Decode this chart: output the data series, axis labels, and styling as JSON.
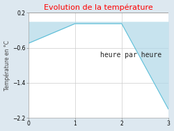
{
  "title": "Evolution de la température",
  "title_color": "#ff0000",
  "ylabel": "Température en °C",
  "xlabel_text": "heure par heure",
  "x": [
    0,
    1,
    2,
    3
  ],
  "y": [
    -0.5,
    -0.05,
    -0.05,
    -2.0
  ],
  "xlim": [
    0,
    3
  ],
  "ylim": [
    -2.2,
    0.2
  ],
  "yticks": [
    0.2,
    -0.6,
    -1.4,
    -2.2
  ],
  "xticks": [
    0,
    1,
    2,
    3
  ],
  "fill_color": "#b0d8e8",
  "fill_alpha": 0.7,
  "line_color": "#5abed8",
  "line_width": 0.8,
  "bg_color": "#dde8f0",
  "plot_bg_color": "#ffffff",
  "grid_color": "#cccccc",
  "title_fontsize": 8,
  "ylabel_fontsize": 5.5,
  "tick_fontsize": 5.5,
  "xlabel_fontsize": 7
}
